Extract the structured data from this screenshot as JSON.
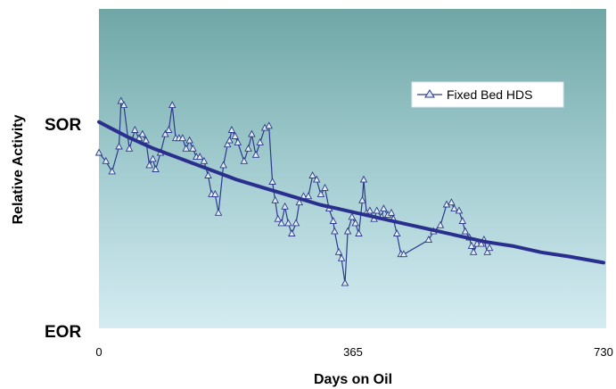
{
  "chart_data": {
    "type": "line",
    "title": "",
    "xlabel": "Days on Oil",
    "ylabel": "Relative Activity",
    "xlim": [
      0,
      730
    ],
    "ylim": [
      "EOR",
      "SOR"
    ],
    "x_ticks": [
      "0",
      "365",
      "730"
    ],
    "y_ticks": [
      "SOR",
      "EOR"
    ],
    "legend_position": "top-right",
    "grid": false,
    "series": [
      {
        "name": "Fixed Bed HDS",
        "color": "#2b3a8c",
        "marker": "triangle",
        "note_units": "y is relative activity on a 0 (EOR) to 1 (SOR) scale",
        "points": [
          [
            0,
            0.86
          ],
          [
            10,
            0.82
          ],
          [
            19,
            0.77
          ],
          [
            29,
            0.89
          ],
          [
            32,
            1.11
          ],
          [
            36,
            1.09
          ],
          [
            44,
            0.88
          ],
          [
            52,
            0.97
          ],
          [
            58,
            0.93
          ],
          [
            63,
            0.95
          ],
          [
            68,
            0.92
          ],
          [
            73,
            0.8
          ],
          [
            78,
            0.83
          ],
          [
            82,
            0.78
          ],
          [
            89,
            0.86
          ],
          [
            96,
            0.95
          ],
          [
            101,
            0.97
          ],
          [
            106,
            1.09
          ],
          [
            111,
            0.93
          ],
          [
            116,
            0.93
          ],
          [
            121,
            0.93
          ],
          [
            126,
            0.88
          ],
          [
            131,
            0.92
          ],
          [
            136,
            0.88
          ],
          [
            141,
            0.84
          ],
          [
            146,
            0.84
          ],
          [
            152,
            0.82
          ],
          [
            158,
            0.75
          ],
          [
            163,
            0.66
          ],
          [
            168,
            0.66
          ],
          [
            173,
            0.57
          ],
          [
            180,
            0.8
          ],
          [
            186,
            0.9
          ],
          [
            189,
            0.92
          ],
          [
            192,
            0.97
          ],
          [
            197,
            0.94
          ],
          [
            201,
            0.91
          ],
          [
            210,
            0.82
          ],
          [
            216,
            0.88
          ],
          [
            221,
            0.95
          ],
          [
            227,
            0.85
          ],
          [
            233,
            0.91
          ],
          [
            240,
            0.98
          ],
          [
            246,
            0.99
          ],
          [
            251,
            0.72
          ],
          [
            255,
            0.63
          ],
          [
            259,
            0.54
          ],
          [
            264,
            0.52
          ],
          [
            269,
            0.6
          ],
          [
            274,
            0.52
          ],
          [
            279,
            0.47
          ],
          [
            285,
            0.52
          ],
          [
            290,
            0.62
          ],
          [
            296,
            0.65
          ],
          [
            303,
            0.65
          ],
          [
            309,
            0.75
          ],
          [
            315,
            0.73
          ],
          [
            321,
            0.66
          ],
          [
            327,
            0.69
          ],
          [
            333,
            0.59
          ],
          [
            339,
            0.53
          ],
          [
            341,
            0.48
          ],
          [
            347,
            0.38
          ],
          [
            351,
            0.35
          ],
          [
            356,
            0.23
          ],
          [
            360,
            0.48
          ],
          [
            366,
            0.55
          ],
          [
            371,
            0.52
          ],
          [
            376,
            0.47
          ],
          [
            381,
            0.63
          ],
          [
            383,
            0.73
          ],
          [
            387,
            0.57
          ],
          [
            392,
            0.58
          ],
          [
            398,
            0.54
          ],
          [
            402,
            0.58
          ],
          [
            409,
            0.55
          ],
          [
            412,
            0.59
          ],
          [
            418,
            0.56
          ],
          [
            423,
            0.57
          ],
          [
            426,
            0.54
          ],
          [
            431,
            0.47
          ],
          [
            437,
            0.37
          ],
          [
            441,
            0.37
          ],
          [
            477,
            0.44
          ],
          [
            484,
            0.48
          ],
          [
            494,
            0.51
          ],
          [
            503,
            0.61
          ],
          [
            510,
            0.62
          ],
          [
            514,
            0.59
          ],
          [
            521,
            0.58
          ],
          [
            526,
            0.53
          ],
          [
            530,
            0.48
          ],
          [
            536,
            0.45
          ],
          [
            539,
            0.41
          ],
          [
            542,
            0.38
          ],
          [
            547,
            0.42
          ],
          [
            553,
            0.42
          ],
          [
            557,
            0.44
          ],
          [
            562,
            0.38
          ],
          [
            565,
            0.4
          ]
        ]
      },
      {
        "name": "",
        "color": "#2a2f8e",
        "marker": "none",
        "note_units": "trend curve",
        "points": [
          [
            0,
            1.01
          ],
          [
            40,
            0.94
          ],
          [
            80,
            0.88
          ],
          [
            120,
            0.83
          ],
          [
            160,
            0.78
          ],
          [
            200,
            0.73
          ],
          [
            240,
            0.69
          ],
          [
            280,
            0.65
          ],
          [
            320,
            0.61
          ],
          [
            360,
            0.58
          ],
          [
            400,
            0.55
          ],
          [
            440,
            0.52
          ],
          [
            480,
            0.49
          ],
          [
            520,
            0.46
          ],
          [
            560,
            0.43
          ],
          [
            600,
            0.41
          ],
          [
            640,
            0.38
          ],
          [
            680,
            0.36
          ],
          [
            730,
            0.33
          ]
        ]
      }
    ]
  }
}
